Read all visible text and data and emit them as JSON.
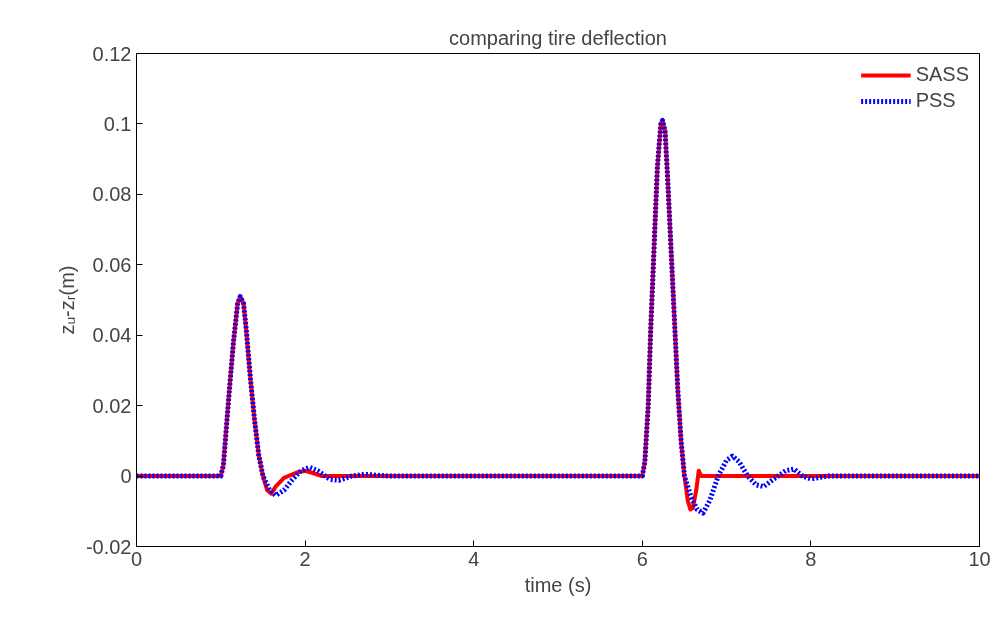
{
  "chart_data": {
    "type": "line",
    "title": "comparing tire deflection",
    "xlabel": "time (s)",
    "ylabel": "zᵤ-zᵣ(m)",
    "xlim": [
      0,
      10
    ],
    "ylim": [
      -0.02,
      0.12
    ],
    "xticks": [
      0,
      2,
      4,
      6,
      8,
      10
    ],
    "yticks": [
      -0.02,
      0,
      0.02,
      0.04,
      0.06,
      0.08,
      0.1,
      0.12
    ],
    "grid": false,
    "legend": "top right",
    "series": [
      {
        "name": "SASS",
        "color": "#ff0000",
        "line_style": "solid",
        "x": [
          0,
          1.0,
          1.03,
          1.06,
          1.1,
          1.15,
          1.2,
          1.23,
          1.27,
          1.3,
          1.35,
          1.4,
          1.45,
          1.5,
          1.55,
          1.6,
          1.65,
          1.75,
          1.9,
          2.0,
          2.1,
          2.2,
          2.5,
          6.0,
          6.03,
          6.07,
          6.1,
          6.14,
          6.18,
          6.22,
          6.24,
          6.27,
          6.3,
          6.34,
          6.38,
          6.42,
          6.46,
          6.5,
          6.54,
          6.57,
          6.6,
          6.64,
          6.67,
          6.7,
          6.9,
          10
        ],
        "values": [
          0,
          0,
          0.003,
          0.012,
          0.024,
          0.038,
          0.049,
          0.051,
          0.049,
          0.042,
          0.028,
          0.016,
          0.006,
          0.0,
          -0.004,
          -0.005,
          -0.003,
          -0.0005,
          0.001,
          0.0015,
          0.0008,
          0,
          0,
          0,
          0.004,
          0.02,
          0.042,
          0.065,
          0.088,
          0.1,
          0.101,
          0.098,
          0.085,
          0.065,
          0.045,
          0.025,
          0.01,
          0.0,
          -0.007,
          -0.0095,
          -0.009,
          -0.004,
          0.0015,
          0,
          0,
          0
        ]
      },
      {
        "name": "PSS",
        "color": "#0000ff",
        "line_style": "dotted",
        "x": [
          0,
          1.0,
          1.03,
          1.06,
          1.1,
          1.15,
          1.2,
          1.23,
          1.27,
          1.3,
          1.35,
          1.4,
          1.45,
          1.5,
          1.58,
          1.65,
          1.75,
          1.85,
          1.95,
          2.05,
          2.15,
          2.3,
          2.4,
          2.55,
          2.7,
          3.0,
          6.0,
          6.03,
          6.07,
          6.1,
          6.14,
          6.18,
          6.22,
          6.24,
          6.27,
          6.3,
          6.34,
          6.38,
          6.42,
          6.46,
          6.5,
          6.58,
          6.65,
          6.72,
          6.8,
          6.9,
          7.0,
          7.07,
          7.15,
          7.25,
          7.35,
          7.44,
          7.55,
          7.7,
          7.8,
          7.9,
          8.0,
          8.2,
          10
        ],
        "values": [
          0,
          0,
          0.003,
          0.012,
          0.024,
          0.038,
          0.049,
          0.051,
          0.049,
          0.042,
          0.028,
          0.016,
          0.006,
          0.0,
          -0.004,
          -0.0055,
          -0.004,
          -0.001,
          0.0015,
          0.0025,
          0.0015,
          -0.001,
          -0.0012,
          0,
          0.0005,
          0,
          0,
          0.004,
          0.02,
          0.042,
          0.065,
          0.088,
          0.1,
          0.101,
          0.098,
          0.085,
          0.065,
          0.045,
          0.025,
          0.01,
          0.0,
          -0.006,
          -0.0095,
          -0.0105,
          -0.007,
          0.0,
          0.0045,
          0.0057,
          0.004,
          0,
          -0.0025,
          -0.003,
          -0.001,
          0.0015,
          0.002,
          0.0,
          -0.0008,
          0,
          0
        ]
      }
    ]
  }
}
